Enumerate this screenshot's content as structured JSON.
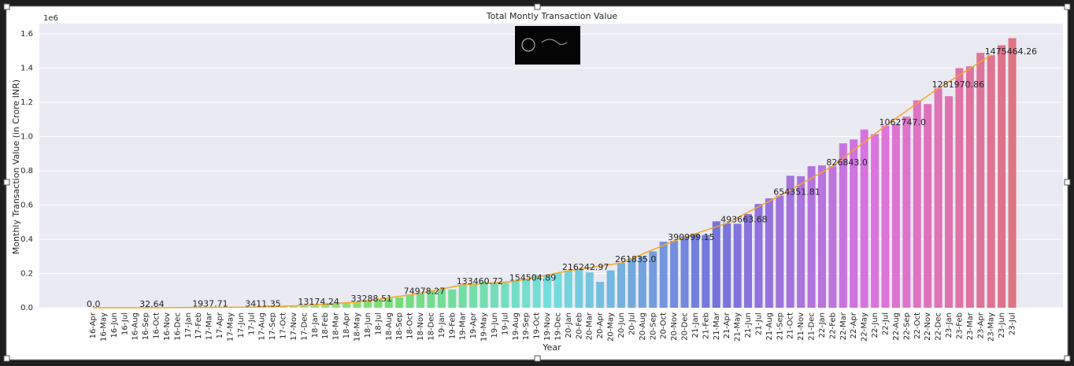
{
  "chart_data": {
    "type": "bar",
    "title": "Total Montly Transaction Value",
    "x_label": "Year",
    "y_label": "Monthly Transaction Value (in Crore INR)",
    "y_offset_label": "1e6",
    "palette": "husl",
    "grid": true,
    "categories": [
      "16-Apr",
      "16-May",
      "16-Jun",
      "16-Jul",
      "16-Aug",
      "16-Sep",
      "16-Oct",
      "16-Nov",
      "16-Dec",
      "17-Jan",
      "17-Feb",
      "17-Mar",
      "17-Apr",
      "17-May",
      "17-Jun",
      "17-Jul",
      "17-Aug",
      "17-Sep",
      "17-Oct",
      "17-Nov",
      "17-Dec",
      "18-Jan",
      "18-Feb",
      "18-Mar",
      "18-Apr",
      "18-May",
      "18-Jun",
      "18-Jul",
      "18-Aug",
      "18-Sep",
      "18-Oct",
      "18-Nov",
      "18-Dec",
      "19-Jan",
      "19-Feb",
      "19-Mar",
      "19-Apr",
      "19-May",
      "19-Jun",
      "19-Jul",
      "19-Aug",
      "19-Sep",
      "19-Oct",
      "19-Nov",
      "19-Dec",
      "20-Jan",
      "20-Feb",
      "20-Mar",
      "20-Apr",
      "20-May",
      "20-Jun",
      "20-Jul",
      "20-Aug",
      "20-Sep",
      "20-Oct",
      "20-Nov",
      "20-Dec",
      "21-Jan",
      "21-Feb",
      "21-Mar",
      "21-Apr",
      "21-May",
      "21-Jun",
      "21-Jul",
      "21-Aug",
      "21-Sep",
      "21-Oct",
      "21-Nov",
      "21-Dec",
      "22-Jan",
      "22-Feb",
      "22-Mar",
      "22-Apr",
      "22-May",
      "22-Jun",
      "22-Jul",
      "22-Aug",
      "22-Sep",
      "22-Oct",
      "22-Nov",
      "22-Dec",
      "23-Jan",
      "23-Feb",
      "23-Mar",
      "23-Apr",
      "23-May",
      "23-Jun",
      "23-Jul"
    ],
    "values": [
      0,
      0,
      0.1,
      0.4,
      3,
      32.64,
      48,
      90,
      707,
      1696,
      1937.71,
      2425,
      2271,
      2797,
      3098,
      3411.35,
      4156,
      5325,
      7057,
      9669,
      13174.24,
      15571,
      19167,
      24172,
      27021,
      33288.51,
      40834,
      51843,
      54212,
      59835,
      74978.27,
      82232,
      102594,
      109932,
      106737,
      133460.72,
      142035,
      152449,
      146387,
      146386,
      154504.89,
      161456,
      191359,
      189229,
      202520,
      216242.97,
      222517,
      206462,
      151141,
      218391,
      261835,
      290538,
      298308,
      329027,
      386107,
      390999.15,
      416176,
      431181,
      425062,
      504886,
      493663.68,
      490638,
      547373,
      606281,
      639116,
      654351.81,
      771444,
      768436,
      826843,
      831993,
      826843,
      960581,
      983302,
      1041520,
      1014384,
      1062747,
      1072792,
      1116438,
      1212000,
      1190000,
      1281970.86,
      1235846,
      1400000,
      1410443,
      1489145,
      1475464.26,
      1533645,
      1575000
    ],
    "line": {
      "color": "#f5a623",
      "categories": [
        "16-Apr",
        "16-Sep",
        "17-Feb",
        "17-Jul",
        "17-Dec",
        "18-May",
        "18-Oct",
        "19-Mar",
        "19-Aug",
        "20-Jan",
        "20-Jun",
        "20-Nov",
        "21-Apr",
        "21-Sep",
        "22-Feb",
        "22-Jul",
        "22-Dec",
        "23-May"
      ],
      "values": [
        0,
        32.64,
        1937.71,
        3411.35,
        13174.24,
        33288.51,
        74978.27,
        133460.72,
        154504.89,
        216242.97,
        261835,
        390999.15,
        493663.68,
        654351.81,
        826843,
        1062747,
        1281970.86,
        1475464.26
      ],
      "value_labels": [
        "0.0",
        "32.64",
        "1937.71",
        "3411.35",
        "13174.24",
        "33288.51",
        "74978.27",
        "133460.72",
        "154504.89",
        "216242.97",
        "261835.0",
        "390999.15",
        "493663.68",
        "654351.81",
        "826843.0",
        "1062747.0",
        "1281970.86",
        "1475464.26"
      ]
    },
    "ylim": [
      0,
      1660000
    ],
    "yticks": [
      {
        "value": 0,
        "label": "0.0"
      },
      {
        "value": 200000,
        "label": "0.2"
      },
      {
        "value": 400000,
        "label": "0.4"
      },
      {
        "value": 600000,
        "label": "0.6"
      },
      {
        "value": 800000,
        "label": "0.8"
      },
      {
        "value": 1000000,
        "label": "1.0"
      },
      {
        "value": 1200000,
        "label": "1.2"
      },
      {
        "value": 1400000,
        "label": "1.4"
      },
      {
        "value": 1600000,
        "label": "1.6"
      }
    ]
  }
}
